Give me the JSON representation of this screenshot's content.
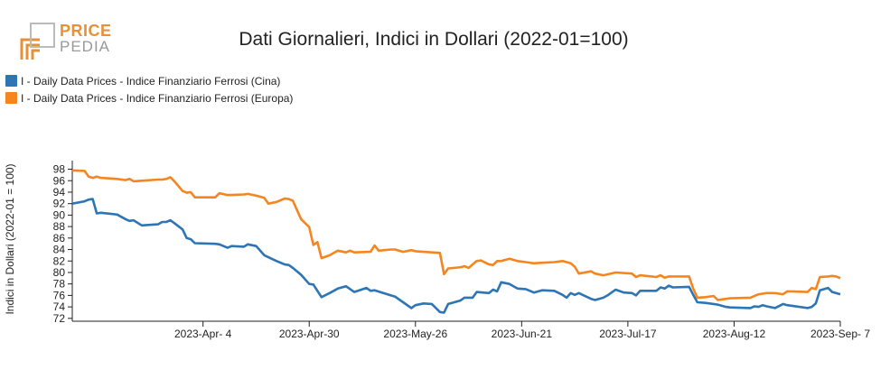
{
  "brand": {
    "line1": "PRICE",
    "line2": "PEDIA"
  },
  "title": "Dati Giornalieri, Indici in Dollari (2022-01=100)",
  "colors": {
    "cina": "#2e75b6",
    "europa": "#f5861f",
    "logo_orange": "#e69138",
    "logo_grey": "#999999"
  },
  "chart_data": {
    "type": "line",
    "ylabel": "Indici in Dollari (2022-01 = 100)",
    "ylim": [
      71.5,
      99.5
    ],
    "yticks": [
      72,
      74,
      76,
      78,
      80,
      82,
      84,
      86,
      88,
      90,
      92,
      94,
      96,
      98
    ],
    "xlim": [
      "2023-03-03",
      "2023-09-07"
    ],
    "xticks": [
      "2023-Apr- 4",
      "2023-Apr-30",
      "2023-May-26",
      "2023-Jun-21",
      "2023-Jul-17",
      "2023-Aug-12",
      "2023-Sep- 7"
    ],
    "xtick_dates": [
      "2023-04-04",
      "2023-04-30",
      "2023-05-26",
      "2023-06-21",
      "2023-07-17",
      "2023-08-12",
      "2023-09-07"
    ],
    "legend_position": "top-left",
    "series": [
      {
        "name": "I - Daily Data Prices - Indice Finanziario Ferrosi (Cina)",
        "color": "#2e75b6",
        "points": [
          [
            "2023-03-03",
            92.0
          ],
          [
            "2023-03-06",
            92.4
          ],
          [
            "2023-03-07",
            92.7
          ],
          [
            "2023-03-08",
            92.8
          ],
          [
            "2023-03-09",
            90.3
          ],
          [
            "2023-03-10",
            90.4
          ],
          [
            "2023-03-14",
            90.1
          ],
          [
            "2023-03-16",
            89.3
          ],
          [
            "2023-03-17",
            89.0
          ],
          [
            "2023-03-18",
            89.1
          ],
          [
            "2023-03-20",
            88.2
          ],
          [
            "2023-03-24",
            88.4
          ],
          [
            "2023-03-25",
            88.8
          ],
          [
            "2023-03-26",
            88.8
          ],
          [
            "2023-03-27",
            89.1
          ],
          [
            "2023-03-28",
            88.6
          ],
          [
            "2023-03-30",
            87.5
          ],
          [
            "2023-03-31",
            86.0
          ],
          [
            "2023-04-01",
            85.8
          ],
          [
            "2023-04-02",
            85.1
          ],
          [
            "2023-04-07",
            85.0
          ],
          [
            "2023-04-08",
            84.9
          ],
          [
            "2023-04-10",
            84.3
          ],
          [
            "2023-04-11",
            84.6
          ],
          [
            "2023-04-14",
            84.5
          ],
          [
            "2023-04-15",
            84.9
          ],
          [
            "2023-04-17",
            84.6
          ],
          [
            "2023-04-19",
            83.0
          ],
          [
            "2023-04-22",
            82.0
          ],
          [
            "2023-04-24",
            81.4
          ],
          [
            "2023-04-25",
            81.3
          ],
          [
            "2023-04-26",
            80.8
          ],
          [
            "2023-04-28",
            79.6
          ],
          [
            "2023-04-30",
            78.0
          ],
          [
            "2023-05-01",
            77.9
          ],
          [
            "2023-05-03",
            75.7
          ],
          [
            "2023-05-05",
            76.4
          ],
          [
            "2023-05-07",
            77.2
          ],
          [
            "2023-05-09",
            77.6
          ],
          [
            "2023-05-11",
            76.6
          ],
          [
            "2023-05-14",
            77.3
          ],
          [
            "2023-05-15",
            76.8
          ],
          [
            "2023-05-16",
            76.9
          ],
          [
            "2023-05-20",
            76.0
          ],
          [
            "2023-05-21",
            75.8
          ],
          [
            "2023-05-23",
            74.8
          ],
          [
            "2023-05-25",
            73.8
          ],
          [
            "2023-05-26",
            74.3
          ],
          [
            "2023-05-28",
            74.6
          ],
          [
            "2023-05-30",
            74.5
          ],
          [
            "2023-06-01",
            73.1
          ],
          [
            "2023-06-02",
            73.0
          ],
          [
            "2023-06-03",
            74.5
          ],
          [
            "2023-06-06",
            75.1
          ],
          [
            "2023-06-07",
            75.6
          ],
          [
            "2023-06-09",
            75.6
          ],
          [
            "2023-06-10",
            76.6
          ],
          [
            "2023-06-13",
            76.4
          ],
          [
            "2023-06-14",
            77.0
          ],
          [
            "2023-06-15",
            76.7
          ],
          [
            "2023-06-16",
            78.3
          ],
          [
            "2023-06-18",
            78.0
          ],
          [
            "2023-06-20",
            77.2
          ],
          [
            "2023-06-22",
            77.1
          ],
          [
            "2023-06-24",
            76.5
          ],
          [
            "2023-06-26",
            76.9
          ],
          [
            "2023-06-29",
            76.8
          ],
          [
            "2023-07-01",
            76.1
          ],
          [
            "2023-07-02",
            75.6
          ],
          [
            "2023-07-03",
            76.4
          ],
          [
            "2023-07-04",
            76.1
          ],
          [
            "2023-07-05",
            76.4
          ],
          [
            "2023-07-08",
            75.4
          ],
          [
            "2023-07-09",
            75.2
          ],
          [
            "2023-07-11",
            75.6
          ],
          [
            "2023-07-12",
            76.0
          ],
          [
            "2023-07-14",
            77.0
          ],
          [
            "2023-07-16",
            76.5
          ],
          [
            "2023-07-18",
            76.4
          ],
          [
            "2023-07-19",
            76.0
          ],
          [
            "2023-07-20",
            76.8
          ],
          [
            "2023-07-24",
            76.8
          ],
          [
            "2023-07-25",
            77.4
          ],
          [
            "2023-07-26",
            77.2
          ],
          [
            "2023-07-27",
            77.7
          ],
          [
            "2023-07-28",
            77.4
          ],
          [
            "2023-08-01",
            77.5
          ],
          [
            "2023-08-02",
            76.1
          ],
          [
            "2023-08-03",
            74.8
          ],
          [
            "2023-08-05",
            74.7
          ],
          [
            "2023-08-07",
            74.5
          ],
          [
            "2023-08-08",
            74.4
          ],
          [
            "2023-08-10",
            74.0
          ],
          [
            "2023-08-11",
            73.9
          ],
          [
            "2023-08-16",
            73.8
          ],
          [
            "2023-08-17",
            74.1
          ],
          [
            "2023-08-18",
            74.0
          ],
          [
            "2023-08-19",
            74.3
          ],
          [
            "2023-08-20",
            74.1
          ],
          [
            "2023-08-22",
            73.8
          ],
          [
            "2023-08-24",
            74.5
          ],
          [
            "2023-08-25",
            74.3
          ],
          [
            "2023-08-26",
            74.2
          ],
          [
            "2023-08-30",
            73.8
          ],
          [
            "2023-08-31",
            74.0
          ],
          [
            "2023-09-01",
            74.6
          ],
          [
            "2023-09-02",
            76.9
          ],
          [
            "2023-09-04",
            77.3
          ],
          [
            "2023-09-05",
            76.6
          ],
          [
            "2023-09-07",
            76.2
          ]
        ]
      },
      {
        "name": "I - Daily Data Prices - Indice Finanziario Ferrosi (Europa)",
        "color": "#f5861f",
        "points": [
          [
            "2023-03-03",
            97.8
          ],
          [
            "2023-03-06",
            97.7
          ],
          [
            "2023-03-07",
            96.7
          ],
          [
            "2023-03-08",
            96.5
          ],
          [
            "2023-03-09",
            96.7
          ],
          [
            "2023-03-10",
            96.5
          ],
          [
            "2023-03-14",
            96.3
          ],
          [
            "2023-03-16",
            96.1
          ],
          [
            "2023-03-17",
            96.3
          ],
          [
            "2023-03-18",
            95.9
          ],
          [
            "2023-03-20",
            96.0
          ],
          [
            "2023-03-24",
            96.2
          ],
          [
            "2023-03-25",
            96.2
          ],
          [
            "2023-03-26",
            96.3
          ],
          [
            "2023-03-27",
            96.6
          ],
          [
            "2023-03-28",
            95.9
          ],
          [
            "2023-03-30",
            94.2
          ],
          [
            "2023-03-31",
            93.9
          ],
          [
            "2023-04-01",
            94.0
          ],
          [
            "2023-04-02",
            93.1
          ],
          [
            "2023-04-07",
            93.1
          ],
          [
            "2023-04-08",
            93.8
          ],
          [
            "2023-04-10",
            93.5
          ],
          [
            "2023-04-11",
            93.5
          ],
          [
            "2023-04-14",
            93.6
          ],
          [
            "2023-04-15",
            93.7
          ],
          [
            "2023-04-17",
            93.4
          ],
          [
            "2023-04-19",
            93.0
          ],
          [
            "2023-04-20",
            92.0
          ],
          [
            "2023-04-22",
            92.3
          ],
          [
            "2023-04-24",
            92.9
          ],
          [
            "2023-04-25",
            92.8
          ],
          [
            "2023-04-26",
            92.5
          ],
          [
            "2023-04-28",
            89.3
          ],
          [
            "2023-04-30",
            87.9
          ],
          [
            "2023-05-01",
            84.8
          ],
          [
            "2023-05-02",
            85.3
          ],
          [
            "2023-05-03",
            82.5
          ],
          [
            "2023-05-05",
            83.0
          ],
          [
            "2023-05-07",
            83.8
          ],
          [
            "2023-05-09",
            83.5
          ],
          [
            "2023-05-10",
            83.8
          ],
          [
            "2023-05-11",
            83.5
          ],
          [
            "2023-05-15",
            83.6
          ],
          [
            "2023-05-16",
            84.7
          ],
          [
            "2023-05-17",
            83.8
          ],
          [
            "2023-05-20",
            84.0
          ],
          [
            "2023-05-21",
            84.0
          ],
          [
            "2023-05-23",
            83.6
          ],
          [
            "2023-05-25",
            83.9
          ],
          [
            "2023-05-26",
            83.7
          ],
          [
            "2023-05-30",
            83.5
          ],
          [
            "2023-06-01",
            83.4
          ],
          [
            "2023-06-02",
            79.7
          ],
          [
            "2023-06-03",
            80.7
          ],
          [
            "2023-06-06",
            80.9
          ],
          [
            "2023-06-07",
            81.1
          ],
          [
            "2023-06-08",
            80.8
          ],
          [
            "2023-06-10",
            82.0
          ],
          [
            "2023-06-11",
            82.1
          ],
          [
            "2023-06-13",
            81.4
          ],
          [
            "2023-06-14",
            81.3
          ],
          [
            "2023-06-15",
            82.0
          ],
          [
            "2023-06-16",
            82.0
          ],
          [
            "2023-06-18",
            82.4
          ],
          [
            "2023-06-20",
            82.0
          ],
          [
            "2023-06-22",
            81.8
          ],
          [
            "2023-06-24",
            81.6
          ],
          [
            "2023-06-26",
            81.7
          ],
          [
            "2023-06-29",
            81.8
          ],
          [
            "2023-07-01",
            82.0
          ],
          [
            "2023-07-03",
            81.6
          ],
          [
            "2023-07-04",
            81.0
          ],
          [
            "2023-07-05",
            79.8
          ],
          [
            "2023-07-08",
            80.2
          ],
          [
            "2023-07-09",
            79.8
          ],
          [
            "2023-07-11",
            79.5
          ],
          [
            "2023-07-14",
            80.0
          ],
          [
            "2023-07-18",
            79.8
          ],
          [
            "2023-07-19",
            79.2
          ],
          [
            "2023-07-20",
            79.5
          ],
          [
            "2023-07-24",
            79.2
          ],
          [
            "2023-07-25",
            79.5
          ],
          [
            "2023-07-26",
            79.1
          ],
          [
            "2023-07-27",
            79.3
          ],
          [
            "2023-08-01",
            79.3
          ],
          [
            "2023-08-02",
            77.2
          ],
          [
            "2023-08-03",
            75.6
          ],
          [
            "2023-08-05",
            75.7
          ],
          [
            "2023-08-07",
            75.9
          ],
          [
            "2023-08-08",
            75.2
          ],
          [
            "2023-08-10",
            75.4
          ],
          [
            "2023-08-11",
            75.5
          ],
          [
            "2023-08-16",
            75.6
          ],
          [
            "2023-08-18",
            76.2
          ],
          [
            "2023-08-20",
            76.4
          ],
          [
            "2023-08-22",
            76.4
          ],
          [
            "2023-08-24",
            76.2
          ],
          [
            "2023-08-25",
            76.7
          ],
          [
            "2023-08-26",
            76.7
          ],
          [
            "2023-08-30",
            76.6
          ],
          [
            "2023-08-31",
            77.3
          ],
          [
            "2023-09-01",
            77.1
          ],
          [
            "2023-09-02",
            79.2
          ],
          [
            "2023-09-04",
            79.3
          ],
          [
            "2023-09-05",
            79.4
          ],
          [
            "2023-09-06",
            79.3
          ],
          [
            "2023-09-07",
            79.0
          ]
        ]
      }
    ]
  }
}
